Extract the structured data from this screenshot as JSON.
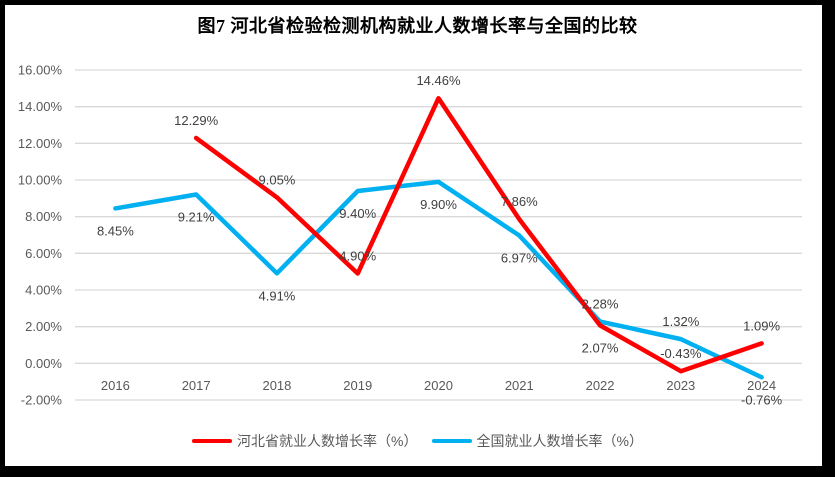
{
  "title": "图7  河北省检验检测机构就业人数增长率与全国的比较",
  "chart_data": {
    "type": "line",
    "title": "图7  河北省检验检测机构就业人数增长率与全国的比较",
    "categories": [
      "2016",
      "2017",
      "2018",
      "2019",
      "2020",
      "2021",
      "2022",
      "2023",
      "2024"
    ],
    "series": [
      {
        "name": "河北省就业人数增长率（%）",
        "color": "#FF0000",
        "values": [
          null,
          12.29,
          9.05,
          4.9,
          14.46,
          7.86,
          2.07,
          -0.43,
          1.09
        ],
        "labels": [
          "",
          "12.29%",
          "9.05%",
          "4.90%",
          "14.46%",
          "7.86%",
          "2.07%",
          "-0.43%",
          "1.09%"
        ],
        "label_positions": [
          "",
          "above",
          "above",
          "above",
          "above",
          "above",
          "below",
          "above",
          "above"
        ]
      },
      {
        "name": "全国就业人数增长率（%）",
        "color": "#00B0F0",
        "values": [
          8.45,
          9.21,
          4.91,
          9.4,
          9.9,
          6.97,
          2.28,
          1.32,
          -0.76
        ],
        "labels": [
          "8.45%",
          "9.21%",
          "4.91%",
          "9.40%",
          "9.90%",
          "6.97%",
          "2.28%",
          "1.32%",
          "-0.76%"
        ],
        "label_positions": [
          "below",
          "below",
          "below",
          "below",
          "below",
          "below",
          "above",
          "above",
          "below"
        ]
      }
    ],
    "ylim": [
      -2,
      16
    ],
    "ytick_step": 2,
    "yticks": [
      "16.00%",
      "14.00%",
      "12.00%",
      "10.00%",
      "8.00%",
      "6.00%",
      "4.00%",
      "2.00%",
      "0.00%",
      "-2.00%"
    ],
    "grid": true,
    "legend_position": "bottom",
    "colors": {
      "gridline": "#D9D9D9",
      "axis_label": "#595959",
      "data_label": "#404040",
      "legend_text": "#595959",
      "frame": "#000000",
      "background": "#FFFFFF"
    }
  }
}
